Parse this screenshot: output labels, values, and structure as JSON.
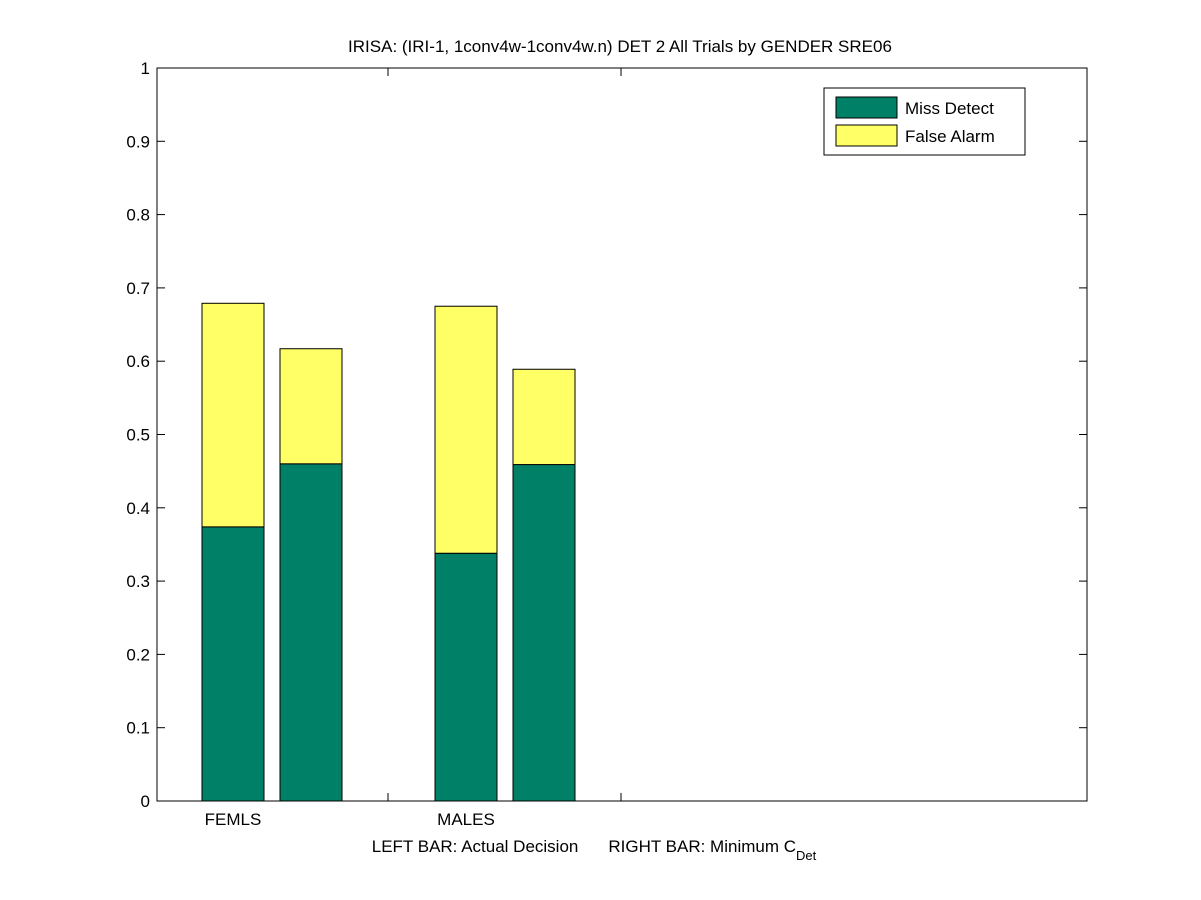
{
  "chart_data": {
    "type": "bar",
    "stacked": true,
    "title": "IRISA: (IRI-1, 1conv4w-1conv4w.n) DET 2 All Trials by GENDER SRE06",
    "xlabel": {
      "left": "LEFT BAR: Actual Decision",
      "right": "RIGHT BAR: Minimum C",
      "right_subscript": "Det"
    },
    "ylabel": "",
    "ylim": [
      0,
      1
    ],
    "yticks": [
      "0",
      "0.1",
      "0.2",
      "0.3",
      "0.4",
      "0.5",
      "0.6",
      "0.7",
      "0.8",
      "0.9",
      "1"
    ],
    "categories": [
      "FEMLS",
      "MALES"
    ],
    "bars_per_category": [
      "Actual Decision",
      "Minimum C_Det"
    ],
    "series": [
      {
        "name": "Miss Detect",
        "color": "#008066",
        "values": [
          [
            0.374,
            0.46
          ],
          [
            0.338,
            0.459
          ]
        ]
      },
      {
        "name": "False Alarm",
        "color": "#ffff66",
        "values": [
          [
            0.305,
            0.157
          ],
          [
            0.337,
            0.13
          ]
        ]
      }
    ],
    "legend_position": "top-right",
    "grid": false
  }
}
